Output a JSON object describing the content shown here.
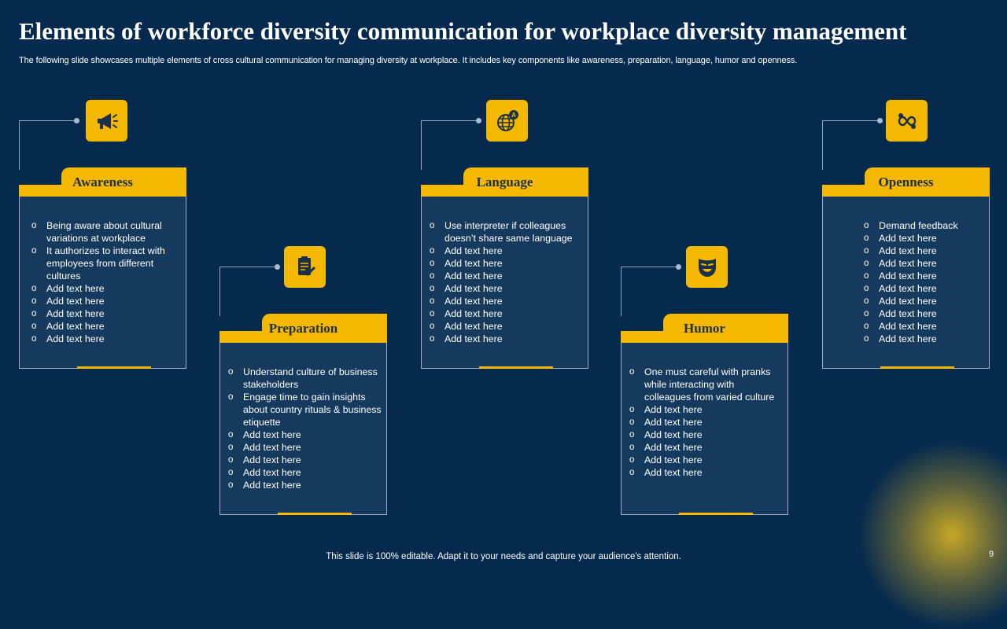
{
  "title": "Elements of workforce diversity communication for workplace diversity management",
  "subtitle": "The following slide showcases multiple elements of cross cultural communication for managing diversity at workplace. It includes key components like awareness, preparation, language, humor and openness.",
  "cards": [
    {
      "label": "Awareness",
      "icon": "megaphone-icon",
      "items": [
        "Being aware  about cultural variations  at workplace",
        "It authorizes to interact with employees from different  cultures",
        "Add text here",
        "Add text here",
        "Add text here",
        "Add text here",
        "Add text here"
      ]
    },
    {
      "label": "Preparation",
      "icon": "checklist-icon",
      "items": [
        "Understand culture of business stakeholders",
        "Engage time to gain insights about country rituals & business etiquette",
        "Add text here",
        "Add text here",
        "Add text here",
        "Add text here",
        "Add text here"
      ]
    },
    {
      "label": "Language",
      "icon": "globe-translate-icon",
      "items": [
        "Use interpreter if colleagues doesn’t share same language",
        "Add text here",
        "Add text here",
        "Add text here",
        "Add text here",
        "Add text here",
        "Add text here",
        "Add text here",
        "Add text here"
      ]
    },
    {
      "label": "Humor",
      "icon": "theater-mask-icon",
      "items": [
        "One must careful with pranks while interacting with colleagues from varied  culture",
        "Add text here",
        "Add text here",
        "Add text here",
        "Add text here",
        "Add text here",
        "Add text here"
      ]
    },
    {
      "label": "Openness",
      "icon": "gears-infinity-icon",
      "items": [
        "Demand feedback",
        "Add text here",
        "Add text here",
        "Add text here",
        "Add text here",
        "Add text here",
        "Add text here",
        "Add text here",
        "Add text here",
        "Add text here"
      ]
    }
  ],
  "footer": "This slide is 100% editable. Adapt it to your needs and capture your audience's attention.",
  "page_number": "9",
  "colors": {
    "background": "#062a4d",
    "accent": "#f5b800",
    "card_fill": "#163a5e"
  }
}
